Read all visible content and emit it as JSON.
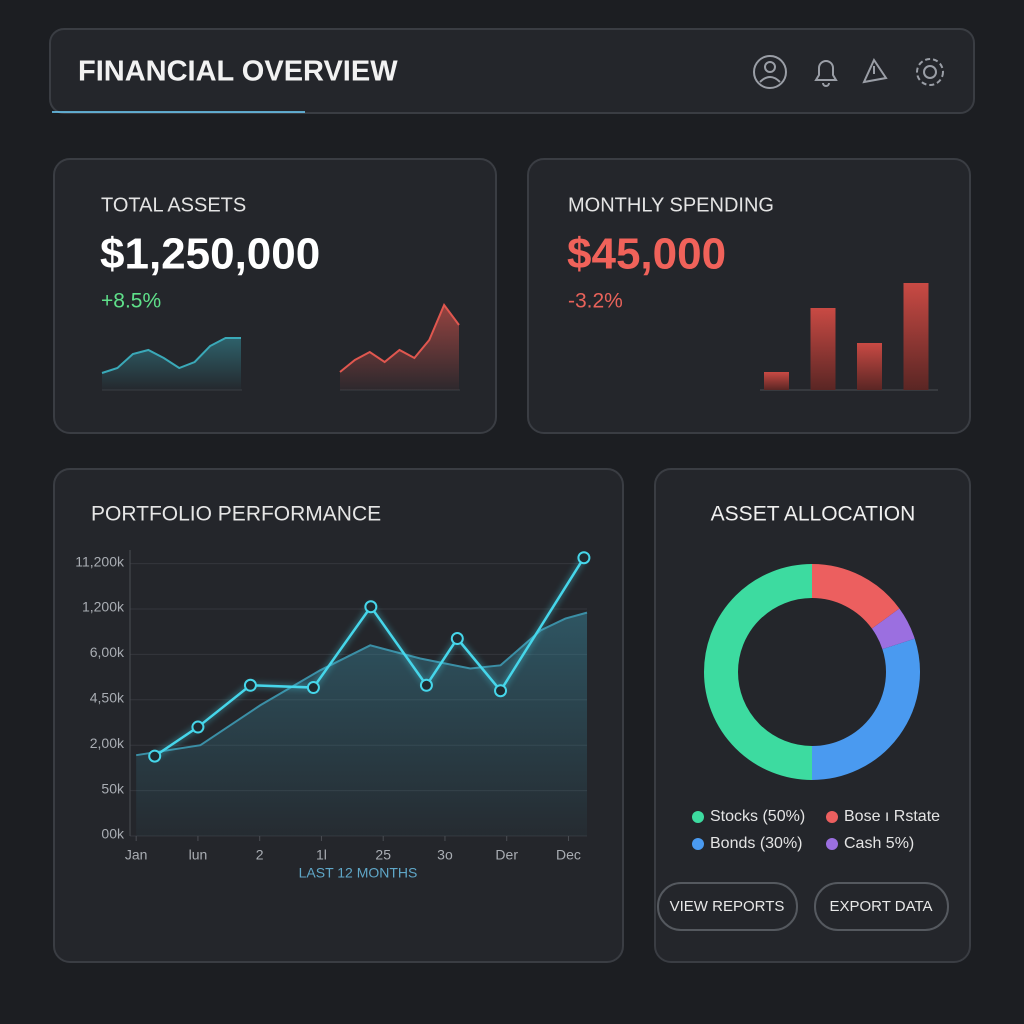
{
  "header": {
    "title": "FINANCIAL OVERVIEW"
  },
  "total_assets": {
    "label": "TOTAL ASSETS",
    "value": "$1,250,000",
    "change": "+8.5%",
    "sparkline_a": {
      "color": "#3aa9b8",
      "values": [
        17,
        22,
        36,
        40,
        32,
        22,
        28,
        44,
        52,
        52
      ]
    },
    "sparkline_b": {
      "color": "#e0574f",
      "values": [
        18,
        30,
        38,
        28,
        40,
        32,
        50,
        85,
        65
      ]
    }
  },
  "monthly_spending": {
    "label": "MONTHLY SPENDING",
    "value": "$45,000",
    "change": "-3.2%",
    "bars": {
      "color": "#c94a44",
      "values": [
        18,
        82,
        47,
        107
      ]
    }
  },
  "portfolio": {
    "type": "line",
    "title": "PORTFOLIO PERFORMANCE",
    "xlabel": "LAST 12 MONTHS",
    "xlim": [
      -0.1,
      7.3
    ],
    "ylim": [
      0,
      6.3
    ],
    "xticks": [
      {
        "value": 0,
        "label": "Jan"
      },
      {
        "value": 1,
        "label": "lun"
      },
      2,
      {
        "value": 3,
        "label": "1l"
      },
      {
        "value": 4,
        "label": "25"
      },
      {
        "value": 5,
        "label": "3o"
      },
      {
        "value": 6,
        "label": "Der"
      },
      {
        "value": 7,
        "label": "Dec"
      }
    ],
    "yticks": [
      {
        "value": 0,
        "label": "00k"
      },
      {
        "value": 1,
        "label": "50k"
      },
      {
        "value": 2,
        "label": "2,00k"
      },
      {
        "value": 3,
        "label": "4,50k"
      },
      {
        "value": 4,
        "label": "6,00k"
      },
      {
        "value": 5,
        "label": "1,200k"
      },
      {
        "value": 6,
        "label": "11,200k"
      }
    ],
    "grid": true,
    "line": {
      "color": "#46d6ea",
      "x": [
        0.3,
        1.0,
        1.85,
        2.87,
        3.8,
        4.7,
        5.2,
        5.9,
        7.25
      ],
      "values": [
        1.76,
        2.4,
        3.32,
        3.27,
        5.05,
        3.32,
        4.35,
        3.2,
        6.13
      ]
    },
    "area": {
      "color": "#3b8fa6",
      "x": [
        0,
        1.04,
        2.01,
        2.98,
        3.79,
        4.6,
        5.41,
        5.9,
        6.55,
        6.95,
        7.3
      ],
      "values": [
        1.78,
        2.0,
        2.88,
        3.65,
        4.2,
        3.91,
        3.69,
        3.76,
        4.53,
        4.79,
        4.92
      ]
    }
  },
  "allocation": {
    "type": "pie",
    "title": "ASSET ALLOCATION",
    "labels": [
      "Stocks (50%)",
      "Bonds (30%)",
      "Cash 5%)",
      "Bose ı Rstate"
    ],
    "values": [
      50,
      30,
      5,
      15
    ],
    "colors": [
      "#3ddba0",
      "#4a9af0",
      "#9b6fe0",
      "#ec5f5f"
    ]
  },
  "buttons": [
    "VIEW REPORTS",
    "EXPORT DATA"
  ]
}
